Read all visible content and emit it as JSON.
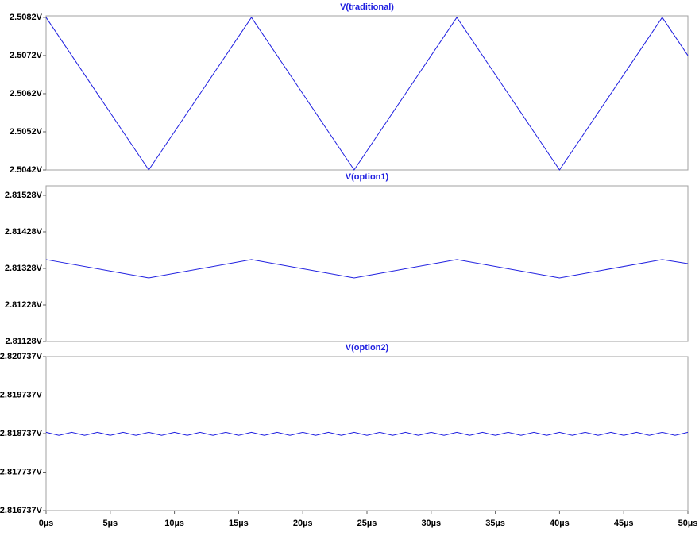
{
  "chart_data": [
    {
      "type": "line",
      "title": "V(traditional)",
      "color": "#2020e0",
      "x": [
        0,
        8,
        16,
        24,
        32,
        40,
        48,
        50
      ],
      "values": [
        2.5082,
        2.5042,
        2.5082,
        2.5042,
        2.5082,
        2.5042,
        2.5082,
        2.5072
      ],
      "xlim": [
        0,
        50
      ],
      "ylim": [
        2.5042,
        2.50824
      ],
      "yticks": [
        {
          "value": 2.5042,
          "label": "2.5042V"
        },
        {
          "value": 2.5052,
          "label": "2.5052V"
        },
        {
          "value": 2.5062,
          "label": "2.5062V"
        },
        {
          "value": 2.5072,
          "label": "2.5072V"
        },
        {
          "value": 2.5082,
          "label": "2.5082V"
        }
      ]
    },
    {
      "type": "line",
      "title": "V(option1)",
      "color": "#2020e0",
      "x": [
        0,
        8,
        16,
        24,
        32,
        40,
        48,
        50
      ],
      "values": [
        2.81352,
        2.81302,
        2.81352,
        2.81302,
        2.81352,
        2.81302,
        2.81352,
        2.81341
      ],
      "xlim": [
        0,
        50
      ],
      "ylim": [
        2.81128,
        2.81554
      ],
      "yticks": [
        {
          "value": 2.81128,
          "label": "2.81128V"
        },
        {
          "value": 2.81228,
          "label": "2.81228V"
        },
        {
          "value": 2.81328,
          "label": "2.81328V"
        },
        {
          "value": 2.81428,
          "label": "2.81428V"
        },
        {
          "value": 2.81528,
          "label": "2.81528V"
        }
      ]
    },
    {
      "type": "line",
      "title": "V(option2)",
      "color": "#2020e0",
      "x": [
        0,
        1,
        2,
        3,
        4,
        5,
        6,
        7,
        8,
        9,
        10,
        11,
        12,
        13,
        14,
        15,
        16,
        17,
        18,
        19,
        20,
        21,
        22,
        23,
        24,
        25,
        26,
        27,
        28,
        29,
        30,
        31,
        32,
        33,
        34,
        35,
        36,
        37,
        38,
        39,
        40,
        41,
        42,
        43,
        44,
        45,
        46,
        47,
        48,
        49,
        50
      ],
      "values": [
        2.81877,
        2.81869,
        2.81877,
        2.81869,
        2.81877,
        2.81869,
        2.81877,
        2.81869,
        2.81877,
        2.81869,
        2.81877,
        2.81869,
        2.81877,
        2.81869,
        2.81877,
        2.81869,
        2.81877,
        2.81869,
        2.81877,
        2.81869,
        2.81877,
        2.81869,
        2.81877,
        2.81869,
        2.81877,
        2.81869,
        2.81877,
        2.81869,
        2.81877,
        2.81869,
        2.81877,
        2.81869,
        2.81877,
        2.81869,
        2.81877,
        2.81869,
        2.81877,
        2.81869,
        2.81877,
        2.81869,
        2.81877,
        2.81869,
        2.81877,
        2.81869,
        2.81877,
        2.81869,
        2.81877,
        2.81869,
        2.81877,
        2.81869,
        2.81877
      ],
      "xlim": [
        0,
        50
      ],
      "ylim": [
        2.816737,
        2.820737
      ],
      "yticks": [
        {
          "value": 2.816737,
          "label": "2.816737V"
        },
        {
          "value": 2.817737,
          "label": "2.817737V"
        },
        {
          "value": 2.818737,
          "label": "2.818737V"
        },
        {
          "value": 2.819737,
          "label": "2.819737V"
        },
        {
          "value": 2.820737,
          "label": "2.820737V"
        }
      ],
      "xticks": [
        {
          "value": 0,
          "label": "0µs"
        },
        {
          "value": 5,
          "label": "5µs"
        },
        {
          "value": 10,
          "label": "10µs"
        },
        {
          "value": 15,
          "label": "15µs"
        },
        {
          "value": 20,
          "label": "20µs"
        },
        {
          "value": 25,
          "label": "25µs"
        },
        {
          "value": 30,
          "label": "30µs"
        },
        {
          "value": 35,
          "label": "35µs"
        },
        {
          "value": 40,
          "label": "40µs"
        },
        {
          "value": 45,
          "label": "45µs"
        },
        {
          "value": 50,
          "label": "50µs"
        }
      ]
    }
  ]
}
